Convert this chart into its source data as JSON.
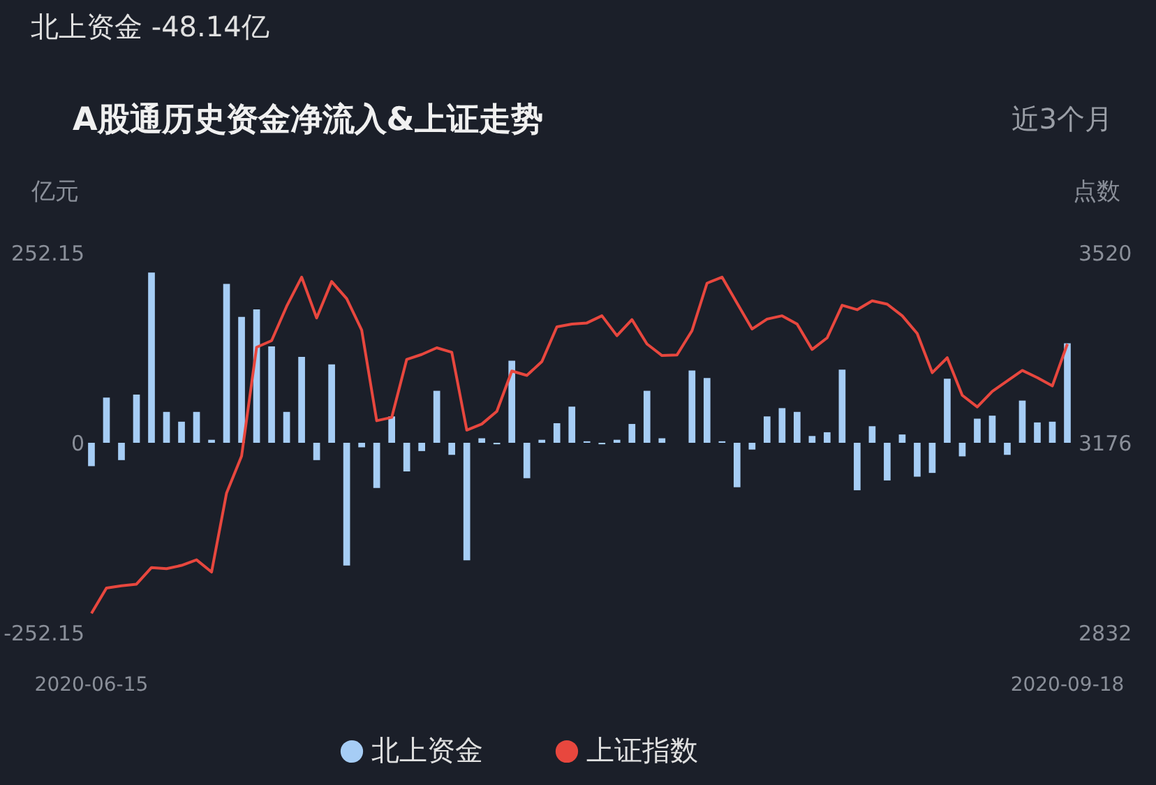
{
  "chart_data": {
    "type": "bar",
    "title": "A股通历史资金净流入&上证走势",
    "ylabel": "亿元",
    "y2label": "点数",
    "annotations": [
      "北上资金 -48.14亿",
      "近3个月"
    ],
    "categories": [
      "2020-06-15",
      null,
      null,
      null,
      null,
      null,
      null,
      null,
      null,
      null,
      null,
      null,
      null,
      null,
      null,
      null,
      null,
      null,
      null,
      null,
      null,
      null,
      null,
      null,
      null,
      null,
      null,
      null,
      null,
      null,
      null,
      null,
      null,
      null,
      null,
      null,
      null,
      null,
      null,
      null,
      null,
      null,
      null,
      null,
      null,
      null,
      null,
      null,
      null,
      null,
      null,
      null,
      null,
      null,
      null,
      null,
      null,
      null,
      null,
      null,
      null,
      null,
      null,
      null,
      null,
      "2020-09-18"
    ],
    "series": [
      {
        "name": "北上资金",
        "color": "#a6cdf5",
        "values": [
          -31,
          60,
          -23,
          64,
          226,
          41,
          28,
          41,
          4,
          211,
          167,
          177,
          128,
          41,
          114,
          -23,
          104,
          -163,
          -6,
          -60,
          35,
          -38,
          -11,
          69,
          -16,
          -156,
          6,
          -2,
          109,
          -47,
          4,
          26,
          48,
          2,
          -2,
          4,
          25,
          69,
          6,
          0,
          96,
          86,
          2,
          -59,
          -9,
          35,
          46,
          41,
          9,
          14,
          97,
          -63,
          22,
          -50,
          11,
          -45,
          -40,
          85,
          -18,
          32,
          36,
          -16,
          56,
          27,
          28,
          132
        ]
      },
      {
        "name": "上证指数",
        "type": "line",
        "axis": "y2",
        "color": "#e8473e",
        "values": [
          2867,
          2913,
          2917,
          2920,
          2950,
          2948,
          2954,
          2964,
          2942,
          3085,
          3152,
          3349,
          3361,
          3423,
          3476,
          3402,
          3468,
          3437,
          3380,
          3216,
          3222,
          3327,
          3336,
          3348,
          3340,
          3199,
          3210,
          3233,
          3306,
          3298,
          3323,
          3386,
          3391,
          3393,
          3406,
          3370,
          3399,
          3355,
          3334,
          3335,
          3379,
          3465,
          3476,
          3429,
          3382,
          3400,
          3406,
          3391,
          3345,
          3366,
          3425,
          3417,
          3433,
          3427,
          3406,
          3374,
          3303,
          3330,
          3262,
          3241,
          3269,
          3288,
          3307,
          3294,
          3279,
          3355
        ]
      }
    ],
    "ylim": [
      -252.15,
      252.15
    ],
    "yticks": [
      -252.15,
      0,
      252.15
    ],
    "y2lim": [
      2832,
      3520
    ],
    "y2ticks": [
      2832,
      3176,
      3520
    ],
    "grid": false,
    "legend": "bottom"
  }
}
